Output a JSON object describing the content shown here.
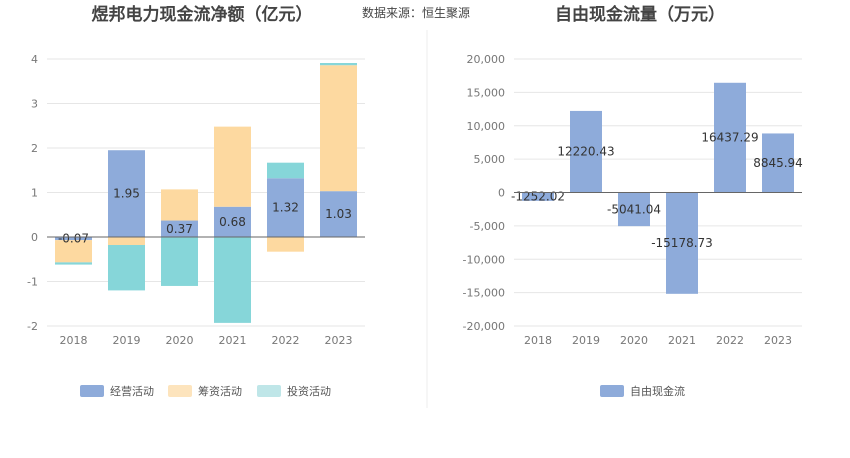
{
  "source_label": "数据来源：恒生聚源",
  "colors": {
    "operating": "#8eabda",
    "financing": "#fdd9a0",
    "investing": "#86d6d9",
    "free_cash_flow": "#8eabda",
    "legend_operating": "#8eabda",
    "legend_financing": "#fde4bd",
    "legend_investing": "#bfe6e8"
  },
  "chart_data": [
    {
      "type": "bar",
      "stacked": true,
      "title": "煜邦电力现金流净额（亿元）",
      "categories": [
        "2018",
        "2019",
        "2020",
        "2021",
        "2022",
        "2023"
      ],
      "ylim": [
        -2,
        4
      ],
      "yticks": [
        "-2",
        "-1",
        "0",
        "1",
        "2",
        "3",
        "4"
      ],
      "grid": true,
      "legend": "bottom",
      "series": [
        {
          "name": "经营活动",
          "values": [
            -0.07,
            1.95,
            0.37,
            0.68,
            1.32,
            1.03
          ]
        },
        {
          "name": "筹资活动",
          "values": [
            -0.5,
            -0.18,
            0.7,
            1.8,
            -0.33,
            2.83
          ]
        },
        {
          "name": "投资活动",
          "values": [
            -0.05,
            -1.02,
            -1.1,
            -1.93,
            0.35,
            0.05
          ]
        }
      ],
      "data_labels": [
        "-0.07",
        "1.95",
        "0.37",
        "0.68",
        "1.32",
        "1.03"
      ]
    },
    {
      "type": "bar",
      "title": "自由现金流量（万元）",
      "categories": [
        "2018",
        "2019",
        "2020",
        "2021",
        "2022",
        "2023"
      ],
      "ylim": [
        -20000,
        20000
      ],
      "yticks": [
        "-20,000",
        "-15,000",
        "-10,000",
        "-5,000",
        "0",
        "5,000",
        "10,000",
        "15,000",
        "20,000"
      ],
      "grid": true,
      "legend": "bottom",
      "series": [
        {
          "name": "自由现金流",
          "values": [
            -1252.02,
            12220.43,
            -5041.04,
            -15178.73,
            16437.29,
            8845.94
          ]
        }
      ],
      "data_labels": [
        "-1252.02",
        "12220.43",
        "-5041.04",
        "-15178.73",
        "16437.29",
        "8845.94"
      ]
    }
  ]
}
